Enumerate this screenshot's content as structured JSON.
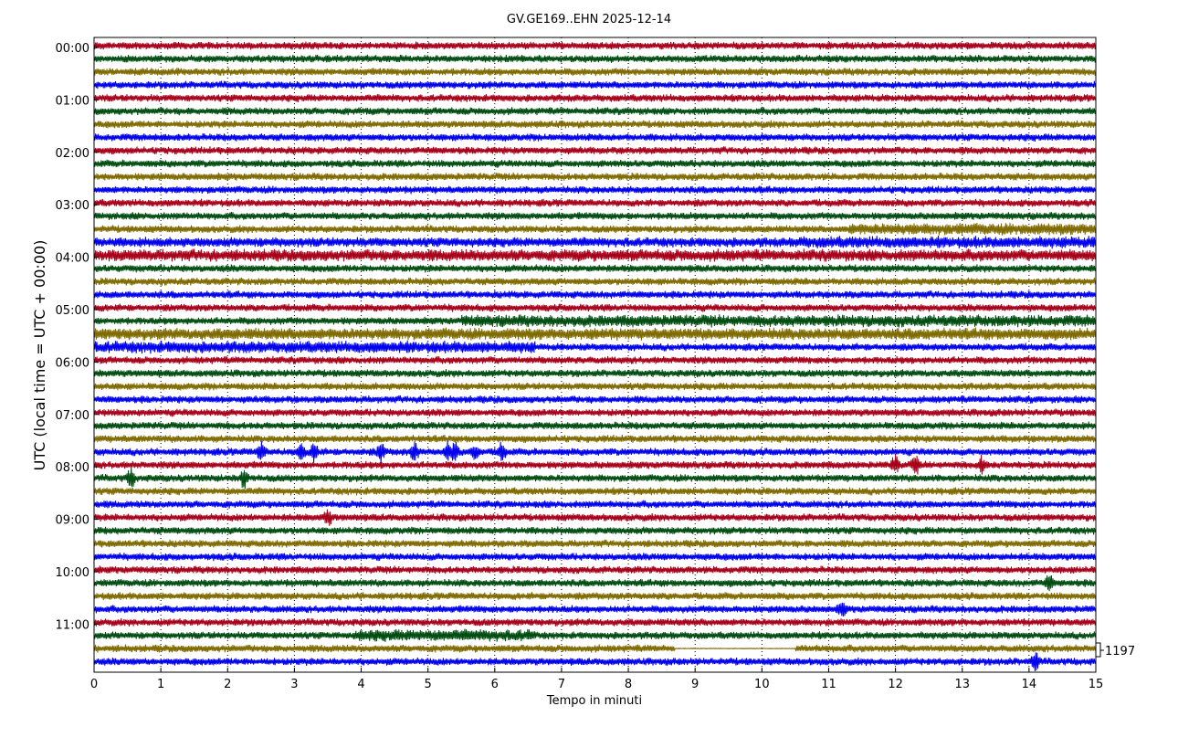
{
  "chart_data": {
    "type": "line",
    "title": "GV.GE169..EHN 2025-12-14",
    "xlabel": "Tempo in minuti",
    "ylabel": "UTC (local time = UTC + 00:00)",
    "xlim": [
      0,
      15
    ],
    "x_ticks": [
      "0",
      "1",
      "2",
      "3",
      "4",
      "5",
      "6",
      "7",
      "8",
      "9",
      "10",
      "11",
      "12",
      "13",
      "14",
      "15"
    ],
    "y_ticks": [
      "00:00",
      "01:00",
      "02:00",
      "03:00",
      "04:00",
      "05:00",
      "06:00",
      "07:00",
      "08:00",
      "09:00",
      "10:00",
      "11:00"
    ],
    "traces_per_hour": 4,
    "trace_count": 48,
    "trace_colors": [
      "#a8001a",
      "#004d12",
      "#7f6b00",
      "#0000f0"
    ],
    "grid": "vertical dotted at each minute",
    "scale_label": "1197",
    "base_amplitude": 1,
    "segments": [
      {
        "trace": 14,
        "from": 11.3,
        "to": 15,
        "amplitude": 1.6
      },
      {
        "trace": 15,
        "from": 10.5,
        "to": 15,
        "amplitude": 1.6
      },
      {
        "trace": 15,
        "from": 0,
        "to": 10.5,
        "amplitude": 1.3
      },
      {
        "trace": 16,
        "from": 0,
        "to": 15,
        "amplitude": 1.6
      },
      {
        "trace": 21,
        "from": 5.5,
        "to": 15,
        "amplitude": 1.6
      },
      {
        "trace": 22,
        "from": 0,
        "to": 15,
        "amplitude": 1.6
      },
      {
        "trace": 23,
        "from": 0,
        "to": 6.6,
        "amplitude": 1.6
      },
      {
        "trace": 45,
        "from": 3.9,
        "to": 6.6,
        "amplitude": 1.6
      },
      {
        "trace": 46,
        "from": 8.7,
        "to": 10.5,
        "amplitude": 0.1
      }
    ],
    "events": [
      {
        "trace": 31,
        "minutes": [
          2.5,
          3.1,
          3.3,
          4.3,
          4.8,
          5.3,
          5.4,
          5.7,
          6.1
        ],
        "amplitude": 2.5
      },
      {
        "trace": 32,
        "minutes": [
          12.0,
          12.3,
          13.3
        ],
        "amplitude": 2.2
      },
      {
        "trace": 33,
        "minutes": [
          0.55,
          2.25
        ],
        "amplitude": 2.5
      },
      {
        "trace": 36,
        "minutes": [
          3.5
        ],
        "amplitude": 2
      },
      {
        "trace": 41,
        "minutes": [
          14.3
        ],
        "amplitude": 2
      },
      {
        "trace": 43,
        "minutes": [
          11.2
        ],
        "amplitude": 1.8
      },
      {
        "trace": 47,
        "minutes": [
          14.1
        ],
        "amplitude": 2.5
      }
    ]
  }
}
